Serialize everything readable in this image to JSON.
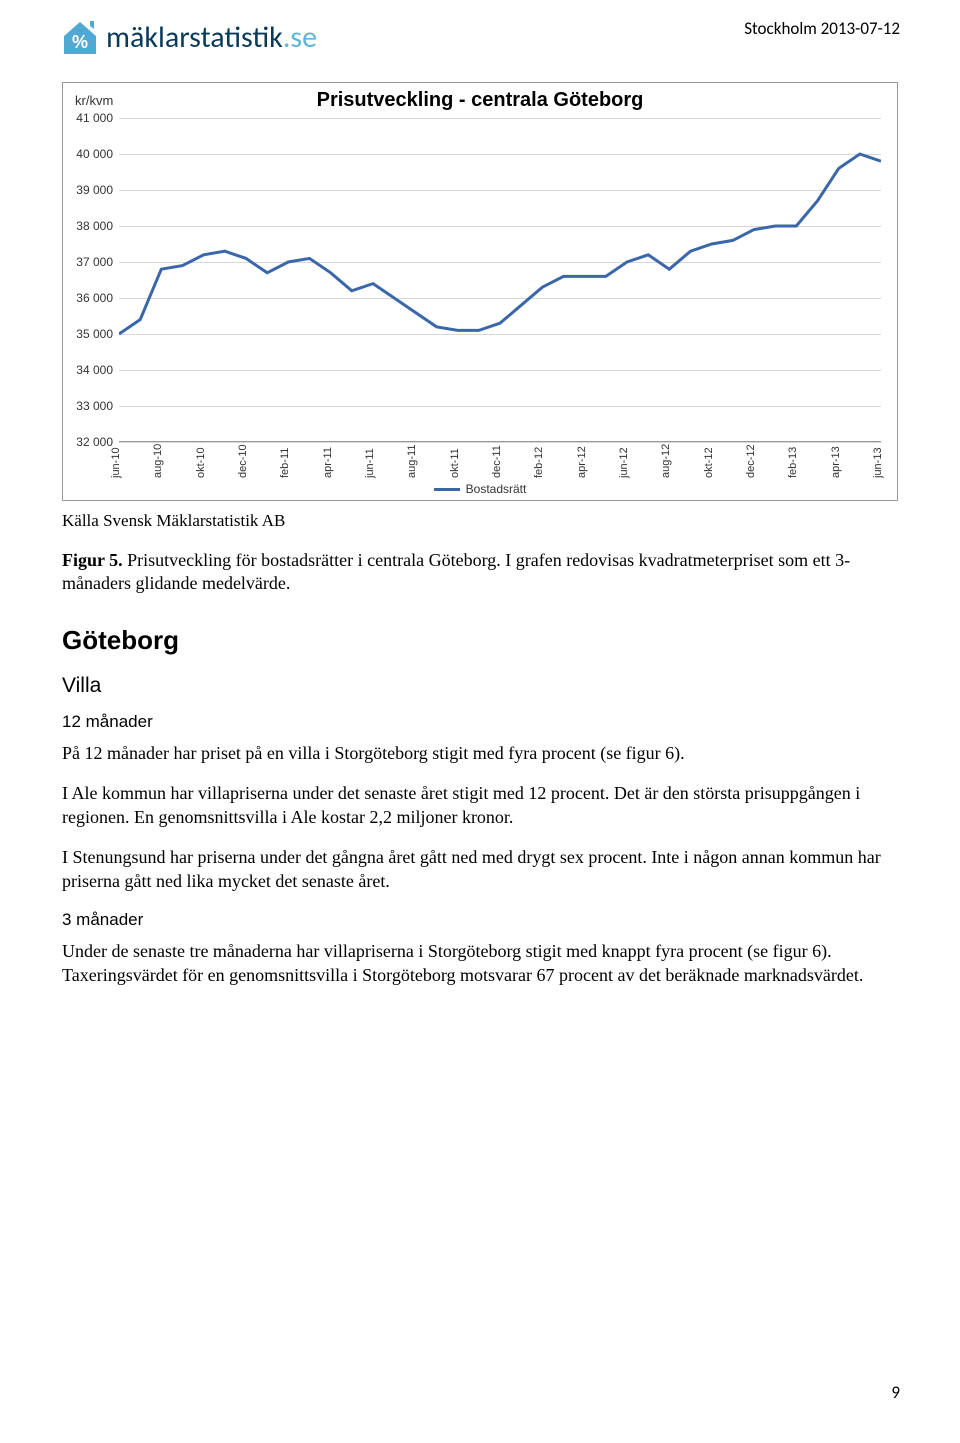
{
  "header": {
    "logo_text_main": "mäklarstatistik",
    "logo_text_domain": ".se",
    "date": "Stockholm 2013-07-12"
  },
  "chart": {
    "type": "line",
    "title": "Prisutveckling - centrala Göteborg",
    "y_axis_label": "kr/kvm",
    "ylim": [
      32000,
      41000
    ],
    "ytick_step": 1000,
    "yticks": [
      "41 000",
      "40 000",
      "39 000",
      "38 000",
      "37 000",
      "36 000",
      "35 000",
      "34 000",
      "33 000",
      "32 000"
    ],
    "x_labels": [
      "jun-10",
      "aug-10",
      "okt-10",
      "dec-10",
      "feb-11",
      "apr-11",
      "jun-11",
      "aug-11",
      "okt-11",
      "dec-11",
      "feb-12",
      "apr-12",
      "jun-12",
      "aug-12",
      "okt-12",
      "dec-12",
      "feb-13",
      "apr-13",
      "jun-13"
    ],
    "values": [
      35000,
      35400,
      36800,
      36900,
      37200,
      37300,
      37100,
      36700,
      37000,
      37100,
      36700,
      36200,
      36400,
      36000,
      35600,
      35200,
      35100,
      35100,
      35300,
      35800,
      36300,
      36600,
      36600,
      36600,
      37000,
      37200,
      36800,
      37300,
      37500,
      37600,
      37900,
      38000,
      38000,
      38700,
      39600,
      40000,
      39800
    ],
    "line_color": "#3a66aa",
    "line_width": 3,
    "grid_color": "#d8d8d8",
    "background_color": "#ffffff",
    "legend_label": "Bostadsrätt",
    "title_fontsize": 20,
    "label_fontsize": 12
  },
  "source": "Källa Svensk Mäklarstatistik AB",
  "caption": {
    "fig_label": "Figur 5.",
    "text": " Prisutveckling för bostadsrätter i centrala Göteborg. I grafen redovisas kvadratmeterpriset som ett 3-månaders glidande medelvärde."
  },
  "section_h2": "Göteborg",
  "section_h3": "Villa",
  "sub1": "12 månader",
  "p1": "På 12 månader har priset på en villa i Storgöteborg stigit med fyra procent (se figur 6).",
  "p2": "I Ale kommun har villapriserna under det senaste året stigit med 12 procent. Det är den största prisuppgången i regionen. En genomsnittsvilla i Ale kostar 2,2 miljoner kronor.",
  "p3": "I Stenungsund har priserna under det gångna året gått ned med drygt sex procent. Inte i någon annan kommun har priserna gått ned lika mycket det senaste året.",
  "sub2": "3 månader",
  "p4": "Under de senaste tre månaderna har villapriserna i Storgöteborg stigit med knappt fyra procent (se figur 6). Taxeringsvärdet för en genomsnittsvilla i Storgöteborg motsvarar 67 procent av det beräknade marknadsvärdet.",
  "page_num": "9"
}
